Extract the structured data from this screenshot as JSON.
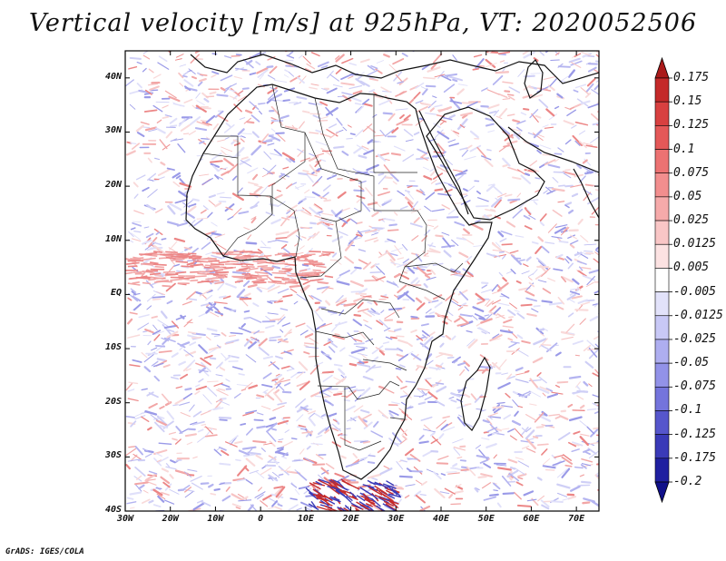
{
  "title": "Vertical velocity [m/s] at 925hPa, VT: 2020052506",
  "credit": "GrADS: IGES/COLA",
  "map": {
    "projection": "latlon",
    "lon_range": [
      -30,
      75
    ],
    "lat_range": [
      -40,
      45
    ],
    "lat_ticks": [
      "40N",
      "30N",
      "20N",
      "10N",
      "EQ",
      "10S",
      "20S",
      "30S",
      "40S"
    ],
    "lat_tick_values": [
      40,
      30,
      20,
      10,
      0,
      -10,
      -20,
      -30,
      -40
    ],
    "lon_ticks": [
      "30W",
      "20W",
      "10W",
      "0",
      "10E",
      "20E",
      "30E",
      "40E",
      "50E",
      "60E",
      "70E"
    ],
    "lon_tick_values": [
      -30,
      -20,
      -10,
      0,
      10,
      20,
      30,
      40,
      50,
      60,
      70
    ],
    "variable": "vertical velocity",
    "units": "m/s",
    "level": "925hPa",
    "valid_time": "2020052506"
  },
  "colorbar": {
    "levels": [
      "0.175",
      "0.15",
      "0.125",
      "0.1",
      "0.075",
      "0.05",
      "0.025",
      "0.0125",
      "0.005",
      "-0.005",
      "-0.0125",
      "-0.025",
      "-0.05",
      "-0.075",
      "-0.1",
      "-0.125",
      "-0.175",
      "-0.2"
    ],
    "colors": [
      "#aa1a1a",
      "#c42a2a",
      "#d84040",
      "#e45858",
      "#ec7272",
      "#f28e8e",
      "#f6aaaa",
      "#f9c6c6",
      "#fce2e2",
      "#ffffff",
      "#e2e2fa",
      "#c8c8f6",
      "#aeaef0",
      "#9292e8",
      "#7474dc",
      "#5656cc",
      "#3a3ab8",
      "#2020a0",
      "#10108a"
    ]
  }
}
